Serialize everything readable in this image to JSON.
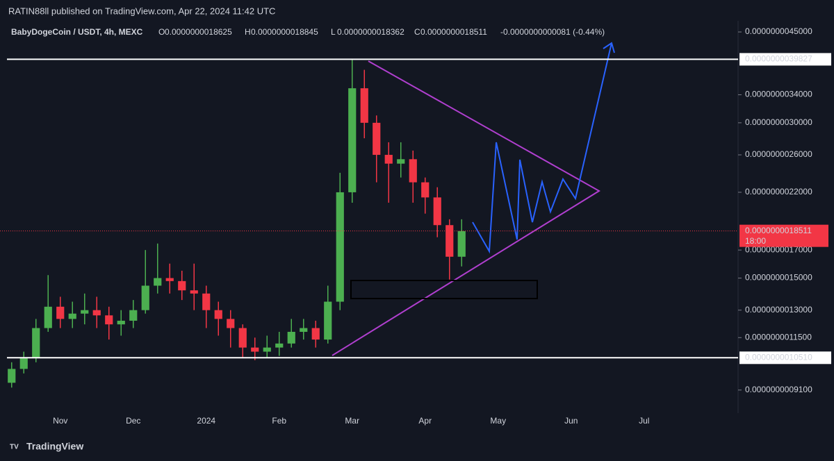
{
  "publisher": "RATIN88ll published on TradingView.com, Apr 22, 2024 11:42 UTC",
  "brand": "TradingView",
  "chart_data": {
    "type": "candlestick",
    "title": "BabyDogeCoin / USDT, 4h, MEXC",
    "ohlc_legend": [
      {
        "key": "O",
        "value": "0.0000000018625"
      },
      {
        "key": "H",
        "value": "0.0000000018845"
      },
      {
        "key": "L",
        "value": "0.0000000018362"
      },
      {
        "key": "C",
        "value": "0.0000000018511"
      }
    ],
    "change": "-0.0000000000081 (-0.44%)",
    "log_scale": true,
    "up_color": "#4caf50",
    "down_color": "#f23645",
    "ylim": [
      8.21e-10,
      5.19e-09
    ],
    "yticks": [
      {
        "value": 4.5e-09,
        "label": "0.0000000045000"
      },
      {
        "value": 3.4e-09,
        "label": "0.0000000034000"
      },
      {
        "value": 3e-09,
        "label": "0.0000000030000"
      },
      {
        "value": 2.6e-09,
        "label": "0.0000000026000"
      },
      {
        "value": 2.2e-09,
        "label": "0.0000000022000"
      },
      {
        "value": 1.7e-09,
        "label": "0.0000000017000"
      },
      {
        "value": 1.5e-09,
        "label": "0.0000000015000"
      },
      {
        "value": 1.3e-09,
        "label": "0.0000000013000"
      },
      {
        "value": 1.15e-09,
        "label": "0.0000000011500"
      },
      {
        "value": 9.1e-10,
        "label": "0.0000000009100"
      }
    ],
    "levels": [
      {
        "value": 3.9827e-09,
        "label": "0.0000000039827"
      },
      {
        "value": 1.051e-09,
        "label": "0.0000000010510"
      }
    ],
    "last_price": {
      "value": 1.8511e-09,
      "label": "0.0000000018511",
      "countdown": "18:00",
      "color": "#f23645"
    },
    "categories": [
      null,
      null,
      null,
      null,
      "Nov",
      null,
      null,
      null,
      null,
      null,
      "Dec",
      null,
      null,
      null,
      null,
      null,
      "2024",
      null,
      null,
      null,
      null,
      null,
      "Feb",
      null,
      null,
      null,
      null,
      null,
      "Mar",
      null,
      null,
      null,
      null,
      null,
      "Apr",
      null,
      null,
      null,
      null,
      null,
      "May",
      null,
      null,
      null,
      null,
      null,
      "Jun",
      null,
      null,
      null,
      null,
      null,
      "Jul",
      null,
      null,
      null,
      null,
      null,
      null,
      null
    ],
    "open": [
      9.4e-10,
      1e-09,
      1.05e-09,
      1.2e-09,
      1.32e-09,
      1.25e-09,
      1.28e-09,
      1.3e-09,
      1.27e-09,
      1.22e-09,
      1.24e-09,
      1.3e-09,
      1.45e-09,
      1.5e-09,
      1.48e-09,
      1.42e-09,
      1.4e-09,
      1.3e-09,
      1.25e-09,
      1.2e-09,
      1.1e-09,
      1.08e-09,
      1.1e-09,
      1.12e-09,
      1.18e-09,
      1.2e-09,
      1.14e-09,
      1.35e-09,
      2.2e-09,
      3.5e-09,
      3e-09,
      2.6e-09,
      2.5e-09,
      2.55e-09,
      2.3e-09,
      2.15e-09,
      1.9e-09,
      1.65e-09,
      null,
      null,
      null,
      null,
      null,
      null,
      null,
      null,
      null,
      null,
      null,
      null,
      null,
      null,
      null,
      null,
      null,
      null,
      null,
      null,
      null,
      null
    ],
    "high": [
      1.03e-09,
      1.08e-09,
      1.25e-09,
      1.52e-09,
      1.38e-09,
      1.35e-09,
      1.4e-09,
      1.38e-09,
      1.32e-09,
      1.3e-09,
      1.36e-09,
      1.7e-09,
      1.75e-09,
      1.6e-09,
      1.55e-09,
      1.6e-09,
      1.45e-09,
      1.35e-09,
      1.3e-09,
      1.22e-09,
      1.15e-09,
      1.16e-09,
      1.18e-09,
      1.25e-09,
      1.25e-09,
      1.24e-09,
      1.45e-09,
      2.4e-09,
      3.98e-09,
      3.8e-09,
      3.1e-09,
      2.75e-09,
      2.75e-09,
      2.65e-09,
      2.35e-09,
      2.25e-09,
      1.95e-09,
      1.95e-09,
      null,
      null,
      null,
      null,
      null,
      null,
      null,
      null,
      null,
      null,
      null,
      null,
      null,
      null,
      null,
      null,
      null,
      null,
      null,
      null,
      null,
      null
    ],
    "low": [
      9.2e-10,
      9.8e-10,
      1.03e-09,
      1.18e-09,
      1.2e-09,
      1.2e-09,
      1.22e-09,
      1.2e-09,
      1.14e-09,
      1.16e-09,
      1.2e-09,
      1.28e-09,
      1.4e-09,
      1.4e-09,
      1.36e-09,
      1.3e-09,
      1.2e-09,
      1.16e-09,
      1.1e-09,
      1.05e-09,
      1.04e-09,
      1.05e-09,
      1.06e-09,
      1.1e-09,
      1.14e-09,
      1.1e-09,
      1.12e-09,
      1.3e-09,
      2.1e-09,
      2.8e-09,
      2.3e-09,
      2.1e-09,
      2.35e-09,
      2.1e-09,
      2e-09,
      1.8e-09,
      1.49e-09,
      1.58e-09,
      null,
      null,
      null,
      null,
      null,
      null,
      null,
      null,
      null,
      null,
      null,
      null,
      null,
      null,
      null,
      null,
      null,
      null,
      null,
      null,
      null,
      null
    ],
    "close": [
      1e-09,
      1.05e-09,
      1.2e-09,
      1.32e-09,
      1.25e-09,
      1.28e-09,
      1.3e-09,
      1.27e-09,
      1.22e-09,
      1.24e-09,
      1.3e-09,
      1.45e-09,
      1.5e-09,
      1.48e-09,
      1.42e-09,
      1.4e-09,
      1.3e-09,
      1.25e-09,
      1.2e-09,
      1.1e-09,
      1.08e-09,
      1.1e-09,
      1.12e-09,
      1.18e-09,
      1.2e-09,
      1.14e-09,
      1.35e-09,
      2.2e-09,
      3.5e-09,
      3e-09,
      2.6e-09,
      2.5e-09,
      2.55e-09,
      2.3e-09,
      2.15e-09,
      1.9e-09,
      1.65e-09,
      1.85e-09,
      null,
      null,
      null,
      null,
      null,
      null,
      null,
      null,
      null,
      null,
      null,
      null,
      null,
      null,
      null,
      null,
      null,
      null,
      null,
      null,
      null,
      null
    ]
  }
}
